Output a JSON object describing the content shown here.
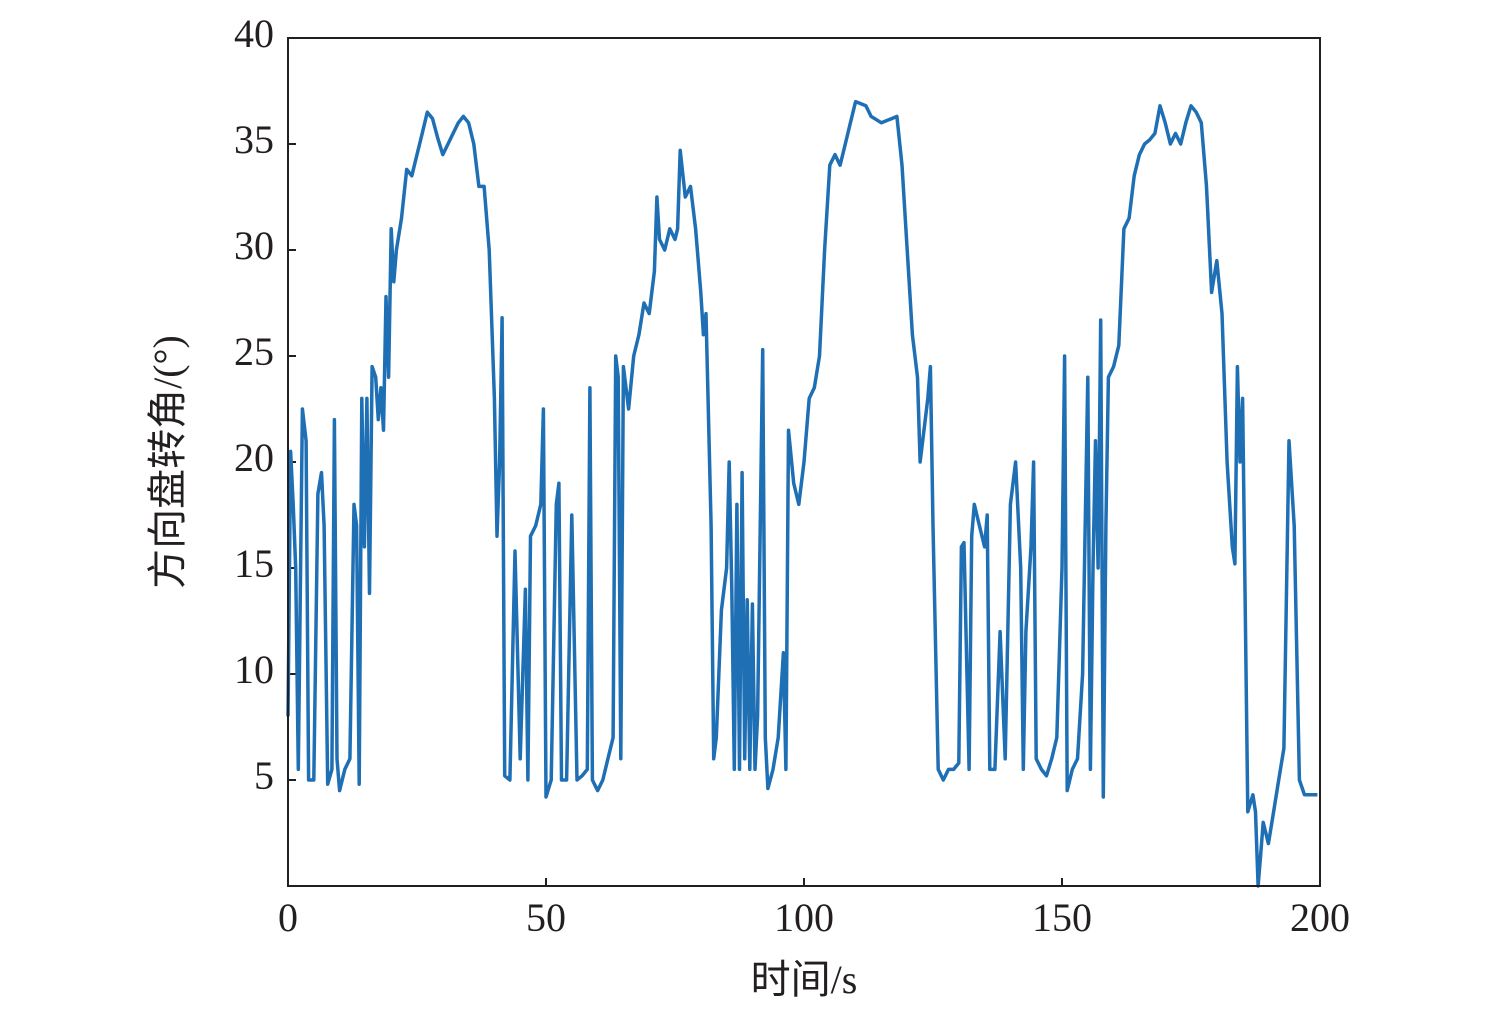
{
  "chart_data": {
    "type": "line",
    "x_label": "时间/s",
    "y_label": "方向盘转角/(°)",
    "xlim": [
      0,
      200
    ],
    "ylim": [
      0,
      40
    ],
    "xticks": [
      0,
      50,
      100,
      150,
      200
    ],
    "yticks": [
      5,
      10,
      15,
      20,
      25,
      30,
      35,
      40
    ],
    "series": [
      {
        "color": "#1f6fb4",
        "x": [
          0,
          0.5,
          1,
          1.5,
          2,
          2.8,
          3.5,
          4,
          5,
          5.8,
          6.5,
          7,
          7.7,
          8.5,
          9,
          9.5,
          10,
          11,
          12,
          12.8,
          13.3,
          13.8,
          14.3,
          14.8,
          15.3,
          15.8,
          16.3,
          17,
          17.5,
          18,
          18.5,
          19,
          19.5,
          20,
          20.5,
          21,
          22,
          23,
          24,
          25,
          26,
          27,
          28,
          29,
          30,
          31,
          32,
          33,
          34,
          35,
          36,
          37,
          38,
          39,
          40,
          40.5,
          41,
          41.5,
          42,
          43,
          44,
          45,
          46,
          46.5,
          47,
          48,
          49,
          49.5,
          50,
          51,
          52,
          52.5,
          53,
          54,
          55,
          56,
          57,
          58,
          58.5,
          59,
          60,
          61,
          62,
          63,
          63.5,
          64,
          64.5,
          65,
          66,
          67,
          68,
          69,
          70,
          71,
          71.5,
          72,
          73,
          74,
          75,
          75.5,
          76,
          77,
          78,
          79,
          80,
          80.5,
          81,
          82,
          82.5,
          83,
          84,
          85,
          85.5,
          86,
          86.5,
          87,
          87.5,
          88,
          88.5,
          89,
          89.5,
          90,
          90.5,
          91,
          92,
          92.5,
          93,
          94,
          95,
          96,
          96.5,
          97,
          98,
          99,
          100,
          101,
          102,
          103,
          104,
          105,
          106,
          107,
          108,
          109,
          110,
          112,
          113,
          115,
          117,
          118,
          119,
          120,
          121,
          122,
          122.5,
          123,
          124,
          124.5,
          125,
          126,
          127,
          128,
          129,
          130,
          130.5,
          131,
          132,
          132.5,
          133,
          134,
          135,
          135.5,
          136,
          137,
          138,
          139,
          140,
          141,
          142,
          142.5,
          143,
          144,
          144.5,
          145,
          146,
          147,
          148,
          149,
          150,
          150.5,
          151,
          152,
          153,
          154,
          155,
          155.5,
          156,
          156.5,
          157,
          157.5,
          158,
          158.5,
          159,
          160,
          161,
          162,
          163,
          164,
          165,
          166,
          167,
          168,
          169,
          170,
          171,
          172,
          173,
          174,
          175,
          176,
          177,
          178,
          179,
          180,
          181,
          182,
          183,
          183.5,
          184,
          184.5,
          185,
          186,
          187,
          187.5,
          188,
          188.5,
          189,
          190,
          191,
          192,
          193,
          194,
          195,
          196,
          197,
          199.5
        ],
        "values": [
          8,
          20.5,
          18,
          15,
          5.5,
          22.5,
          21,
          5,
          5,
          18.5,
          19.5,
          17,
          4.8,
          5.5,
          22,
          6,
          4.5,
          5.5,
          6,
          18,
          17,
          4.8,
          23,
          16,
          23,
          13.8,
          24.5,
          24,
          22,
          23.5,
          21.5,
          27.8,
          24,
          31,
          28.5,
          30,
          31.5,
          33.8,
          33.5,
          34.5,
          35.5,
          36.5,
          36.2,
          35.3,
          34.5,
          35,
          35.5,
          36,
          36.3,
          36,
          35,
          33,
          33,
          30,
          23,
          16.5,
          20,
          26.8,
          5.2,
          5,
          15.8,
          6,
          14,
          5,
          16.5,
          17,
          18,
          22.5,
          4.2,
          5,
          18,
          19,
          5,
          5,
          17.5,
          5,
          5.2,
          5.5,
          23.5,
          5,
          4.5,
          5,
          6,
          7,
          25,
          24,
          6,
          24.5,
          22.5,
          25,
          26,
          27.5,
          27,
          29,
          32.5,
          30.5,
          30,
          31,
          30.5,
          31,
          34.7,
          32.5,
          33,
          31,
          28,
          26,
          27,
          17,
          6,
          7,
          13,
          15,
          20,
          14,
          5.5,
          18,
          5.5,
          19.5,
          6,
          13.5,
          5.5,
          13.3,
          5.5,
          8,
          25.3,
          7,
          4.6,
          5.5,
          7,
          11,
          5.5,
          21.5,
          19,
          18,
          20,
          23,
          23.5,
          25,
          30,
          34,
          34.5,
          34,
          35,
          36,
          37,
          36.8,
          36.3,
          36,
          36.2,
          36.3,
          34,
          30,
          26,
          24,
          20,
          21,
          23,
          24.5,
          17,
          5.5,
          5,
          5.5,
          5.5,
          5.8,
          16,
          16.2,
          5.5,
          16.5,
          18,
          17,
          16,
          17.5,
          5.5,
          5.5,
          12,
          6,
          18,
          20,
          15,
          5.5,
          12,
          16,
          20,
          6,
          5.5,
          5.2,
          6,
          7,
          15,
          25,
          4.5,
          5.5,
          6,
          10,
          24,
          5.5,
          15,
          21,
          15,
          26.7,
          4.2,
          17,
          24,
          24.5,
          25.5,
          31,
          31.5,
          33.5,
          34.5,
          35,
          35.2,
          35.5,
          36.8,
          36,
          35,
          35.5,
          35,
          36,
          36.8,
          36.5,
          36,
          33,
          28,
          29.5,
          27,
          20,
          16,
          15.2,
          24.5,
          20,
          23,
          3.5,
          4.3,
          3.5,
          0,
          1.5,
          3,
          2,
          3.5,
          5,
          6.5,
          21,
          17,
          5,
          4.3,
          4.3
        ]
      }
    ]
  }
}
